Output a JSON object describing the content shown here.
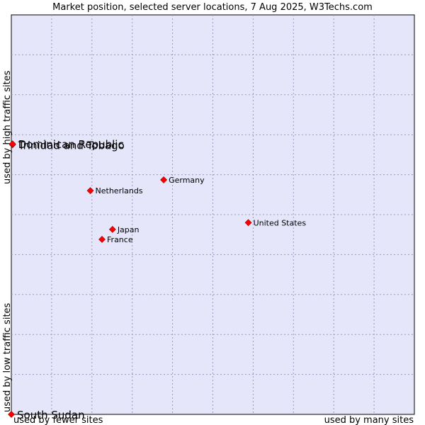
{
  "chart_data": {
    "type": "scatter",
    "title": "Market position, selected server locations, 7 Aug 2025, W3Techs.com",
    "xlabel_low": "used by fewer sites",
    "xlabel_high": "used by many sites",
    "ylabel_low": "used by low traffic sites",
    "ylabel_high": "used by high traffic sites",
    "xlim": [
      0,
      100
    ],
    "ylim": [
      0,
      100
    ],
    "grid": true,
    "points": [
      {
        "label": "Trinidad and Tobago",
        "x": 0.3,
        "y": 67.5,
        "large": true
      },
      {
        "label": "Dominican Republic",
        "x": 0.3,
        "y": 67.7,
        "large": true
      },
      {
        "label": "Germany",
        "x": 37.8,
        "y": 58.7,
        "large": false
      },
      {
        "label": "Netherlands",
        "x": 19.6,
        "y": 56.0,
        "large": false
      },
      {
        "label": "United States",
        "x": 58.8,
        "y": 48.0,
        "large": false
      },
      {
        "label": "Japan",
        "x": 25.1,
        "y": 46.3,
        "large": false
      },
      {
        "label": "France",
        "x": 22.5,
        "y": 43.8,
        "large": false
      },
      {
        "label": "South Sudan",
        "x": 0.0,
        "y": 0.0,
        "large": true
      }
    ]
  }
}
